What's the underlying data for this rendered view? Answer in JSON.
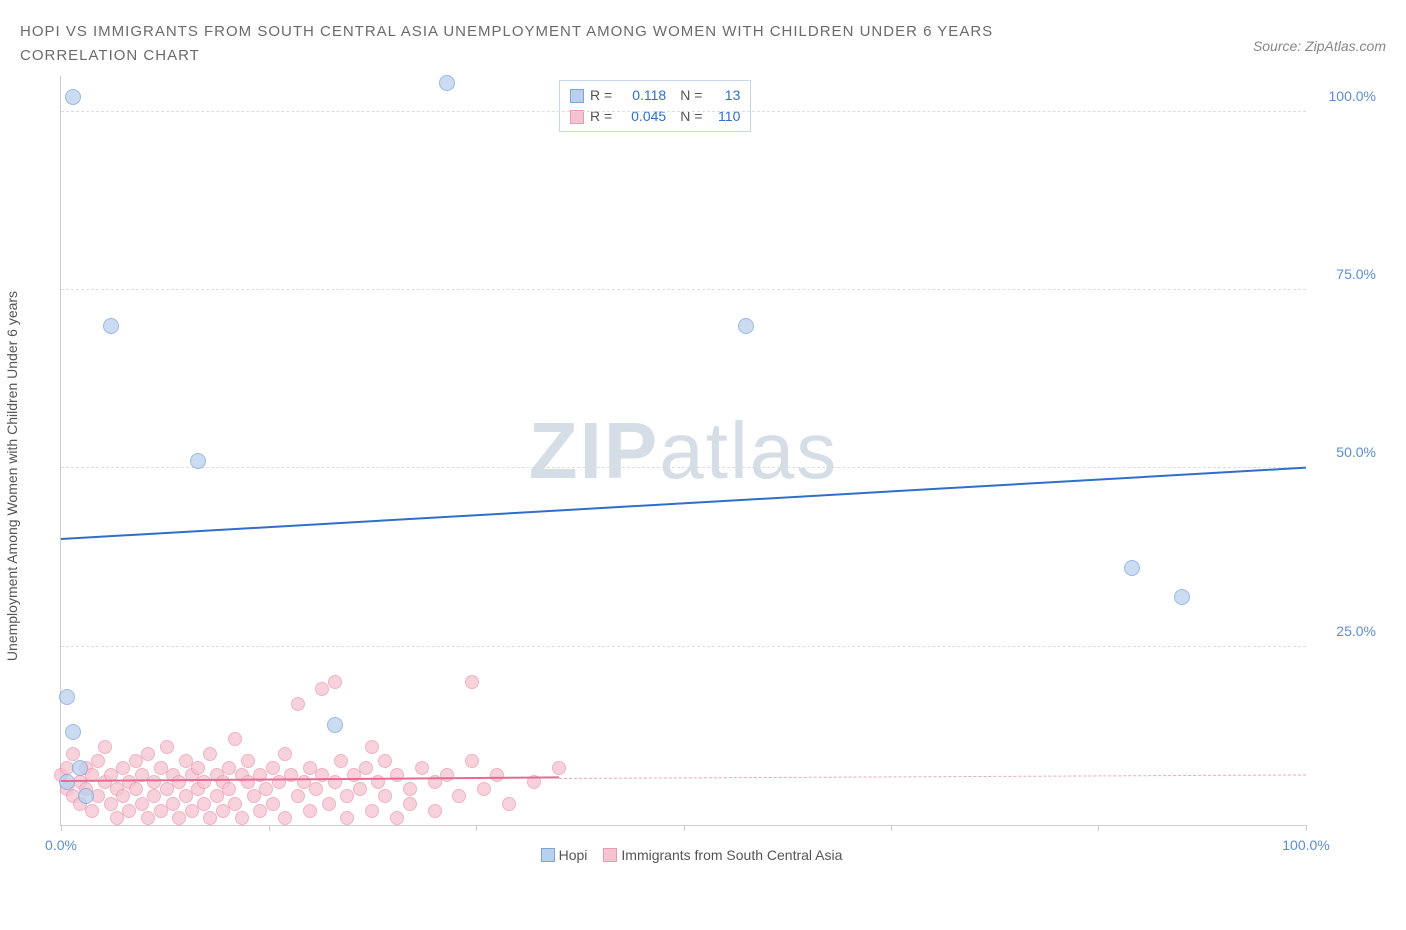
{
  "header": {
    "title_line1": "HOPI VS IMMIGRANTS FROM SOUTH CENTRAL ASIA UNEMPLOYMENT AMONG WOMEN WITH CHILDREN UNDER 6 YEARS",
    "title_line2": "CORRELATION CHART",
    "source": "Source: ZipAtlas.com"
  },
  "chart": {
    "type": "scatter",
    "y_label": "Unemployment Among Women with Children Under 6 years",
    "xlim": [
      0,
      100
    ],
    "ylim": [
      0,
      105
    ],
    "x_ticks": [
      0,
      16.67,
      33.33,
      50,
      66.67,
      83.33,
      100
    ],
    "x_tick_labels": {
      "0": "0.0%",
      "100": "100.0%"
    },
    "x_tick_color": "#5b8dd6",
    "y_grid": [
      25,
      50,
      75,
      100
    ],
    "y_tick_labels": {
      "25": "25.0%",
      "50": "50.0%",
      "75": "75.0%",
      "100": "100.0%"
    },
    "y_tick_color": "#5b8dd6",
    "background_color": "#ffffff",
    "grid_color": "#dddddd",
    "watermark": {
      "text1": "ZIP",
      "text2": "atlas",
      "color": "#d5dde6"
    },
    "series": [
      {
        "name": "Hopi",
        "color_fill": "#b9d0ee",
        "color_stroke": "#7ba3dc",
        "marker_size": 16,
        "legend_R": "0.118",
        "legend_N": "13",
        "trend": {
          "x1": 0,
          "y1": 40,
          "x2": 100,
          "y2": 50,
          "color": "#2f6fc8",
          "width": 2,
          "dash": false
        },
        "points": [
          {
            "x": 1,
            "y": 102
          },
          {
            "x": 31,
            "y": 104
          },
          {
            "x": 4,
            "y": 70
          },
          {
            "x": 55,
            "y": 70
          },
          {
            "x": 11,
            "y": 51
          },
          {
            "x": 86,
            "y": 36
          },
          {
            "x": 90,
            "y": 32
          },
          {
            "x": 0.5,
            "y": 18
          },
          {
            "x": 1,
            "y": 13
          },
          {
            "x": 22,
            "y": 14
          },
          {
            "x": 0.5,
            "y": 6
          },
          {
            "x": 2,
            "y": 4
          },
          {
            "x": 1.5,
            "y": 8
          }
        ]
      },
      {
        "name": "Immigrants from South Central Asia",
        "color_fill": "#f6c3d0",
        "color_stroke": "#ea9ab2",
        "marker_size": 14,
        "legend_R": "0.045",
        "legend_N": "110",
        "trend_solid": {
          "x1": 0,
          "y1": 6,
          "x2": 40,
          "y2": 6.5,
          "color": "#e86a93",
          "width": 2
        },
        "trend_dashed": {
          "x1": 40,
          "y1": 6.5,
          "x2": 100,
          "y2": 7,
          "color": "#e9a9bb",
          "width": 1
        },
        "points": [
          {
            "x": 0,
            "y": 7
          },
          {
            "x": 0.5,
            "y": 5
          },
          {
            "x": 0.5,
            "y": 8
          },
          {
            "x": 1,
            "y": 10
          },
          {
            "x": 1,
            "y": 4
          },
          {
            "x": 1.5,
            "y": 6
          },
          {
            "x": 1.5,
            "y": 3
          },
          {
            "x": 2,
            "y": 8
          },
          {
            "x": 2,
            "y": 5
          },
          {
            "x": 2.5,
            "y": 7
          },
          {
            "x": 2.5,
            "y": 2
          },
          {
            "x": 3,
            "y": 9
          },
          {
            "x": 3,
            "y": 4
          },
          {
            "x": 3.5,
            "y": 6
          },
          {
            "x": 3.5,
            "y": 11
          },
          {
            "x": 4,
            "y": 3
          },
          {
            "x": 4,
            "y": 7
          },
          {
            "x": 4.5,
            "y": 5
          },
          {
            "x": 4.5,
            "y": 1
          },
          {
            "x": 5,
            "y": 8
          },
          {
            "x": 5,
            "y": 4
          },
          {
            "x": 5.5,
            "y": 6
          },
          {
            "x": 5.5,
            "y": 2
          },
          {
            "x": 6,
            "y": 9
          },
          {
            "x": 6,
            "y": 5
          },
          {
            "x": 6.5,
            "y": 7
          },
          {
            "x": 6.5,
            "y": 3
          },
          {
            "x": 7,
            "y": 10
          },
          {
            "x": 7,
            "y": 1
          },
          {
            "x": 7.5,
            "y": 6
          },
          {
            "x": 7.5,
            "y": 4
          },
          {
            "x": 8,
            "y": 8
          },
          {
            "x": 8,
            "y": 2
          },
          {
            "x": 8.5,
            "y": 5
          },
          {
            "x": 8.5,
            "y": 11
          },
          {
            "x": 9,
            "y": 7
          },
          {
            "x": 9,
            "y": 3
          },
          {
            "x": 9.5,
            "y": 6
          },
          {
            "x": 9.5,
            "y": 1
          },
          {
            "x": 10,
            "y": 9
          },
          {
            "x": 10,
            "y": 4
          },
          {
            "x": 10.5,
            "y": 7
          },
          {
            "x": 10.5,
            "y": 2
          },
          {
            "x": 11,
            "y": 5
          },
          {
            "x": 11,
            "y": 8
          },
          {
            "x": 11.5,
            "y": 6
          },
          {
            "x": 11.5,
            "y": 3
          },
          {
            "x": 12,
            "y": 10
          },
          {
            "x": 12,
            "y": 1
          },
          {
            "x": 12.5,
            "y": 7
          },
          {
            "x": 12.5,
            "y": 4
          },
          {
            "x": 13,
            "y": 6
          },
          {
            "x": 13,
            "y": 2
          },
          {
            "x": 13.5,
            "y": 8
          },
          {
            "x": 13.5,
            "y": 5
          },
          {
            "x": 14,
            "y": 12
          },
          {
            "x": 14,
            "y": 3
          },
          {
            "x": 14.5,
            "y": 7
          },
          {
            "x": 14.5,
            "y": 1
          },
          {
            "x": 15,
            "y": 6
          },
          {
            "x": 15,
            "y": 9
          },
          {
            "x": 15.5,
            "y": 4
          },
          {
            "x": 16,
            "y": 7
          },
          {
            "x": 16,
            "y": 2
          },
          {
            "x": 16.5,
            "y": 5
          },
          {
            "x": 17,
            "y": 8
          },
          {
            "x": 17,
            "y": 3
          },
          {
            "x": 17.5,
            "y": 6
          },
          {
            "x": 18,
            "y": 10
          },
          {
            "x": 18,
            "y": 1
          },
          {
            "x": 18.5,
            "y": 7
          },
          {
            "x": 19,
            "y": 4
          },
          {
            "x": 19,
            "y": 17
          },
          {
            "x": 19.5,
            "y": 6
          },
          {
            "x": 20,
            "y": 8
          },
          {
            "x": 20,
            "y": 2
          },
          {
            "x": 20.5,
            "y": 5
          },
          {
            "x": 21,
            "y": 19
          },
          {
            "x": 21,
            "y": 7
          },
          {
            "x": 21.5,
            "y": 3
          },
          {
            "x": 22,
            "y": 20
          },
          {
            "x": 22,
            "y": 6
          },
          {
            "x": 22.5,
            "y": 9
          },
          {
            "x": 23,
            "y": 4
          },
          {
            "x": 23,
            "y": 1
          },
          {
            "x": 23.5,
            "y": 7
          },
          {
            "x": 24,
            "y": 5
          },
          {
            "x": 24.5,
            "y": 8
          },
          {
            "x": 25,
            "y": 2
          },
          {
            "x": 25,
            "y": 11
          },
          {
            "x": 25.5,
            "y": 6
          },
          {
            "x": 26,
            "y": 4
          },
          {
            "x": 26,
            "y": 9
          },
          {
            "x": 27,
            "y": 7
          },
          {
            "x": 27,
            "y": 1
          },
          {
            "x": 28,
            "y": 5
          },
          {
            "x": 28,
            "y": 3
          },
          {
            "x": 29,
            "y": 8
          },
          {
            "x": 30,
            "y": 6
          },
          {
            "x": 30,
            "y": 2
          },
          {
            "x": 31,
            "y": 7
          },
          {
            "x": 32,
            "y": 4
          },
          {
            "x": 33,
            "y": 9
          },
          {
            "x": 33,
            "y": 20
          },
          {
            "x": 34,
            "y": 5
          },
          {
            "x": 35,
            "y": 7
          },
          {
            "x": 36,
            "y": 3
          },
          {
            "x": 38,
            "y": 6
          },
          {
            "x": 40,
            "y": 8
          }
        ]
      }
    ],
    "legend_bottom": [
      {
        "label": "Hopi",
        "fill": "#b9d0ee",
        "stroke": "#7ba3dc"
      },
      {
        "label": "Immigrants from South Central Asia",
        "fill": "#f6c3d0",
        "stroke": "#ea9ab2"
      }
    ],
    "legend_top_label_color": "#555555",
    "legend_top_value_color": "#2f6fc8"
  }
}
